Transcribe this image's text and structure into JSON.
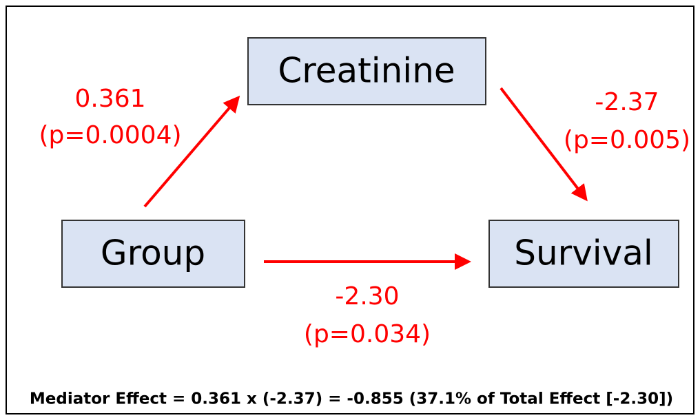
{
  "nodes": [
    {
      "label": "Creatinine"
    },
    {
      "label": "Group"
    },
    {
      "label": "Survival"
    }
  ],
  "edges": [
    {
      "coefficient": "0.361",
      "p": "(p=0.0004)"
    },
    {
      "coefficient": "-2.37",
      "p": "(p=0.005)"
    },
    {
      "coefficient": "-2.30",
      "p": "(p=0.034)"
    }
  ],
  "footer": "Mediator Effect = 0.361 x (-2.37) = -0.855 (37.1% of Total Effect [-2.30])"
}
